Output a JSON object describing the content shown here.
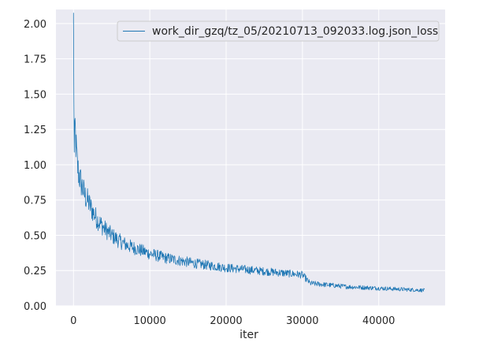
{
  "chart_data": {
    "type": "line",
    "title": "",
    "xlabel": "iter",
    "ylabel": "",
    "xlim": [
      -2300,
      48700
    ],
    "ylim": [
      0.0,
      2.1
    ],
    "xticks": [
      0,
      10000,
      20000,
      30000,
      40000
    ],
    "xtick_labels": [
      "0",
      "10000",
      "20000",
      "30000",
      "40000"
    ],
    "yticks": [
      0.0,
      0.25,
      0.5,
      0.75,
      1.0,
      1.25,
      1.5,
      1.75,
      2.0
    ],
    "ytick_labels": [
      "0.00",
      "0.25",
      "0.50",
      "0.75",
      "1.00",
      "1.25",
      "1.50",
      "1.75",
      "2.00"
    ],
    "grid": true,
    "legend_position": "top-right",
    "background_color": "#eaeaf2",
    "grid_color": "#ffffff",
    "series": [
      {
        "name": "work_dir_gzq/tz_05/20210713_092033.log.json_loss",
        "color": "#1f77b4",
        "x": [
          0,
          100,
          200,
          300,
          400,
          500,
          700,
          1000,
          1500,
          2000,
          2500,
          3000,
          4000,
          5000,
          6000,
          7000,
          8000,
          9000,
          10000,
          12000,
          14000,
          16000,
          18000,
          20000,
          22000,
          24000,
          26000,
          28000,
          30000,
          31000,
          32000,
          34000,
          36000,
          38000,
          40000,
          42000,
          44000,
          46000
        ],
        "y": [
          2.0,
          1.05,
          1.28,
          1.15,
          1.08,
          1.0,
          0.93,
          0.87,
          0.78,
          0.73,
          0.67,
          0.62,
          0.55,
          0.5,
          0.46,
          0.43,
          0.41,
          0.39,
          0.37,
          0.34,
          0.32,
          0.3,
          0.285,
          0.27,
          0.26,
          0.25,
          0.24,
          0.23,
          0.22,
          0.16,
          0.155,
          0.145,
          0.135,
          0.13,
          0.125,
          0.12,
          0.115,
          0.11
        ]
      }
    ]
  }
}
